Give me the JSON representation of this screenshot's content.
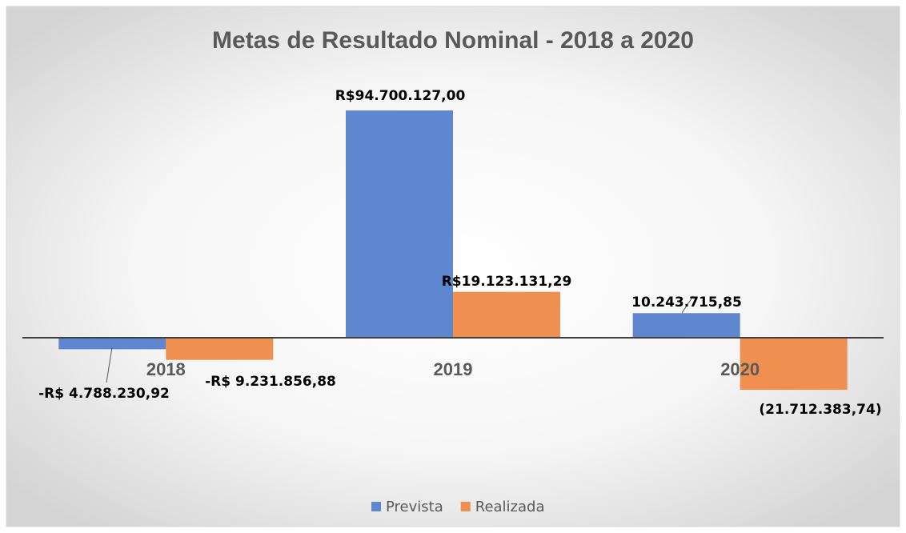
{
  "chart_data": {
    "type": "bar",
    "title": "Metas de Resultado Nominal - 2018 a 2020",
    "categories": [
      "2018",
      "2019",
      "2020"
    ],
    "series": [
      {
        "name": "Prevista",
        "color": "#5f87cf",
        "values": [
          -4788230.92,
          94700127.0,
          10243715.85
        ],
        "value_labels": [
          "-R$ 4.788.230,92",
          "R$94.700.127,00",
          "10.243.715,85"
        ]
      },
      {
        "name": "Realizada",
        "color": "#ef8f50",
        "values": [
          -9231856.88,
          19123131.29,
          -21712383.74
        ],
        "value_labels": [
          "-R$ 9.231.856,88",
          "R$19.123.131,29",
          "(21.712.383,74)"
        ]
      }
    ],
    "legend": "bottom"
  }
}
